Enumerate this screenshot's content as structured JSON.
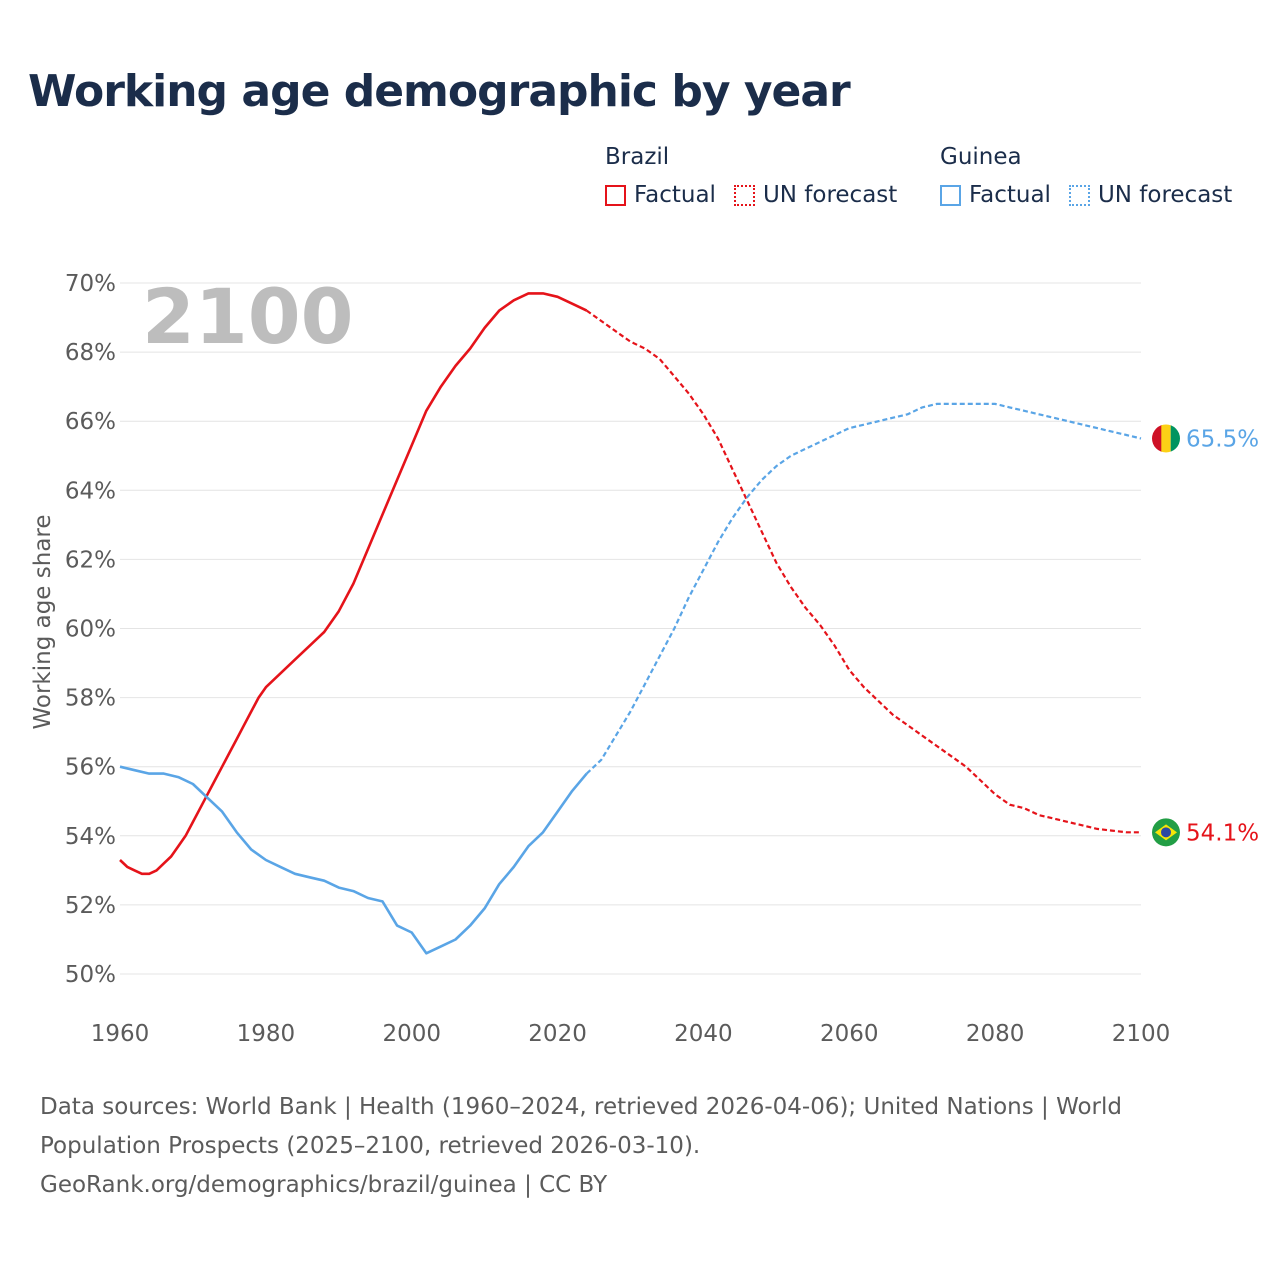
{
  "title": "Working age demographic by year",
  "legend": {
    "brazil": {
      "name": "Brazil",
      "factual": "Factual",
      "forecast": "UN forecast"
    },
    "guinea": {
      "name": "Guinea",
      "factual": "Factual",
      "forecast": "UN forecast"
    }
  },
  "year_watermark": "2100",
  "sources": {
    "line1": "Data sources: World Bank | Health (1960–2024, retrieved 2026-04-06); United Nations | World",
    "line2": "Population Prospects (2025–2100, retrieved 2026-03-10).",
    "line3": "GeoRank.org/demographics/brazil/guinea | CC BY"
  },
  "colors": {
    "brazil": "#e5131a",
    "guinea": "#5aa5e6",
    "grid": "#e4e4e4",
    "text": "#1b2d4a",
    "axis_text": "#5b5b5b"
  },
  "chart_data": {
    "type": "line",
    "ylabel": "Working age share",
    "xlabel": "",
    "xlim": [
      1960,
      2100
    ],
    "ylim": [
      50,
      70
    ],
    "x_ticks": [
      1960,
      1980,
      2000,
      2020,
      2040,
      2060,
      2080,
      2100
    ],
    "y_ticks": [
      50,
      52,
      54,
      56,
      58,
      60,
      62,
      64,
      66,
      68,
      70
    ],
    "y_tick_labels": [
      "50%",
      "52%",
      "54%",
      "56%",
      "58%",
      "60%",
      "62%",
      "64%",
      "66%",
      "68%",
      "70%"
    ],
    "factual_range": [
      1960,
      2024
    ],
    "forecast_range": [
      2025,
      2100
    ],
    "series": [
      {
        "name": "Brazil",
        "color": "#e5131a",
        "end_label": "54.1%",
        "end_icon": "brazil-flag-icon",
        "points": [
          [
            1960,
            53.3
          ],
          [
            1961,
            53.1
          ],
          [
            1962,
            53.0
          ],
          [
            1963,
            52.9
          ],
          [
            1964,
            52.9
          ],
          [
            1965,
            53.0
          ],
          [
            1966,
            53.2
          ],
          [
            1967,
            53.4
          ],
          [
            1968,
            53.7
          ],
          [
            1969,
            54.0
          ],
          [
            1970,
            54.4
          ],
          [
            1971,
            54.8
          ],
          [
            1972,
            55.2
          ],
          [
            1973,
            55.6
          ],
          [
            1974,
            56.0
          ],
          [
            1975,
            56.4
          ],
          [
            1976,
            56.8
          ],
          [
            1977,
            57.2
          ],
          [
            1978,
            57.6
          ],
          [
            1979,
            58.0
          ],
          [
            1980,
            58.3
          ],
          [
            1982,
            58.7
          ],
          [
            1984,
            59.1
          ],
          [
            1986,
            59.5
          ],
          [
            1988,
            59.9
          ],
          [
            1990,
            60.5
          ],
          [
            1992,
            61.3
          ],
          [
            1994,
            62.3
          ],
          [
            1996,
            63.3
          ],
          [
            1998,
            64.3
          ],
          [
            2000,
            65.3
          ],
          [
            2002,
            66.3
          ],
          [
            2004,
            67.0
          ],
          [
            2006,
            67.6
          ],
          [
            2008,
            68.1
          ],
          [
            2010,
            68.7
          ],
          [
            2012,
            69.2
          ],
          [
            2014,
            69.5
          ],
          [
            2016,
            69.7
          ],
          [
            2018,
            69.7
          ],
          [
            2020,
            69.6
          ],
          [
            2022,
            69.4
          ],
          [
            2024,
            69.2
          ],
          [
            2026,
            68.9
          ],
          [
            2028,
            68.6
          ],
          [
            2030,
            68.3
          ],
          [
            2032,
            68.1
          ],
          [
            2034,
            67.8
          ],
          [
            2036,
            67.3
          ],
          [
            2038,
            66.8
          ],
          [
            2040,
            66.2
          ],
          [
            2042,
            65.5
          ],
          [
            2044,
            64.6
          ],
          [
            2046,
            63.7
          ],
          [
            2048,
            62.8
          ],
          [
            2050,
            61.9
          ],
          [
            2052,
            61.2
          ],
          [
            2054,
            60.6
          ],
          [
            2056,
            60.1
          ],
          [
            2058,
            59.5
          ],
          [
            2060,
            58.8
          ],
          [
            2062,
            58.3
          ],
          [
            2064,
            57.9
          ],
          [
            2066,
            57.5
          ],
          [
            2068,
            57.2
          ],
          [
            2070,
            56.9
          ],
          [
            2072,
            56.6
          ],
          [
            2074,
            56.3
          ],
          [
            2076,
            56.0
          ],
          [
            2078,
            55.6
          ],
          [
            2080,
            55.2
          ],
          [
            2082,
            54.9
          ],
          [
            2084,
            54.8
          ],
          [
            2086,
            54.6
          ],
          [
            2088,
            54.5
          ],
          [
            2090,
            54.4
          ],
          [
            2092,
            54.3
          ],
          [
            2094,
            54.2
          ],
          [
            2096,
            54.15
          ],
          [
            2098,
            54.1
          ],
          [
            2100,
            54.1
          ]
        ]
      },
      {
        "name": "Guinea",
        "color": "#5aa5e6",
        "end_label": "65.5%",
        "end_icon": "guinea-flag-icon",
        "points": [
          [
            1960,
            56.0
          ],
          [
            1962,
            55.9
          ],
          [
            1964,
            55.8
          ],
          [
            1966,
            55.8
          ],
          [
            1968,
            55.7
          ],
          [
            1970,
            55.5
          ],
          [
            1972,
            55.1
          ],
          [
            1974,
            54.7
          ],
          [
            1976,
            54.1
          ],
          [
            1978,
            53.6
          ],
          [
            1980,
            53.3
          ],
          [
            1982,
            53.1
          ],
          [
            1984,
            52.9
          ],
          [
            1986,
            52.8
          ],
          [
            1988,
            52.7
          ],
          [
            1990,
            52.5
          ],
          [
            1992,
            52.4
          ],
          [
            1994,
            52.2
          ],
          [
            1996,
            52.1
          ],
          [
            1998,
            51.4
          ],
          [
            2000,
            51.2
          ],
          [
            2002,
            50.6
          ],
          [
            2004,
            50.8
          ],
          [
            2006,
            51.0
          ],
          [
            2008,
            51.4
          ],
          [
            2010,
            51.9
          ],
          [
            2012,
            52.6
          ],
          [
            2014,
            53.1
          ],
          [
            2016,
            53.7
          ],
          [
            2018,
            54.1
          ],
          [
            2020,
            54.7
          ],
          [
            2022,
            55.3
          ],
          [
            2024,
            55.8
          ],
          [
            2026,
            56.2
          ],
          [
            2028,
            56.9
          ],
          [
            2030,
            57.6
          ],
          [
            2032,
            58.4
          ],
          [
            2034,
            59.2
          ],
          [
            2036,
            60.0
          ],
          [
            2038,
            60.9
          ],
          [
            2040,
            61.7
          ],
          [
            2042,
            62.5
          ],
          [
            2044,
            63.2
          ],
          [
            2046,
            63.8
          ],
          [
            2048,
            64.3
          ],
          [
            2050,
            64.7
          ],
          [
            2052,
            65.0
          ],
          [
            2054,
            65.2
          ],
          [
            2056,
            65.4
          ],
          [
            2058,
            65.6
          ],
          [
            2060,
            65.8
          ],
          [
            2062,
            65.9
          ],
          [
            2064,
            66.0
          ],
          [
            2066,
            66.1
          ],
          [
            2068,
            66.2
          ],
          [
            2070,
            66.4
          ],
          [
            2072,
            66.5
          ],
          [
            2074,
            66.5
          ],
          [
            2076,
            66.5
          ],
          [
            2078,
            66.5
          ],
          [
            2080,
            66.5
          ],
          [
            2082,
            66.4
          ],
          [
            2084,
            66.3
          ],
          [
            2086,
            66.2
          ],
          [
            2088,
            66.1
          ],
          [
            2090,
            66.0
          ],
          [
            2092,
            65.9
          ],
          [
            2094,
            65.8
          ],
          [
            2096,
            65.7
          ],
          [
            2098,
            65.6
          ],
          [
            2100,
            65.5
          ]
        ]
      }
    ]
  }
}
